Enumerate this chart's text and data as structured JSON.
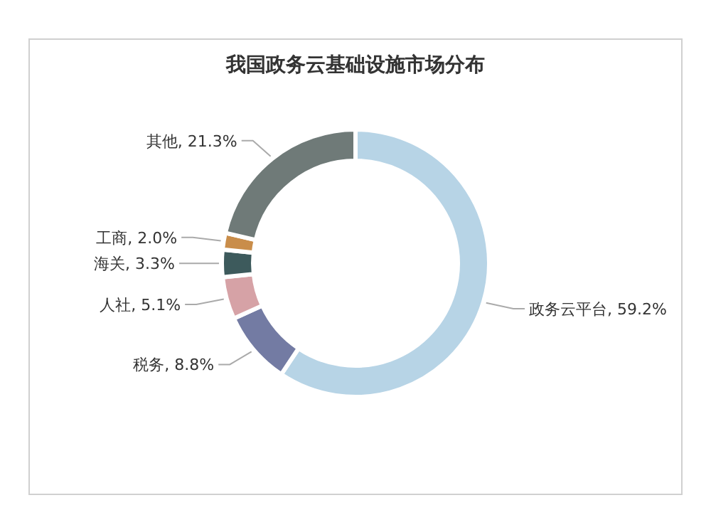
{
  "chart_data": {
    "type": "donut",
    "title": "我国政务云基础设施市场分布",
    "categories": [
      "政务云平台",
      "税务",
      "人社",
      "海关",
      "工商",
      "其他"
    ],
    "values": [
      59.2,
      8.8,
      5.1,
      3.3,
      2.0,
      21.3
    ],
    "colors": [
      "#b7d4e6",
      "#737ba3",
      "#d6a2a6",
      "#3d5a5c",
      "#c98d4a",
      "#6f7a78"
    ],
    "value_labels": [
      ", 59.2%",
      ", 8.8%",
      ", 5.1%",
      ", 3.3%",
      ", 2.0%",
      ", 21.3%"
    ]
  }
}
